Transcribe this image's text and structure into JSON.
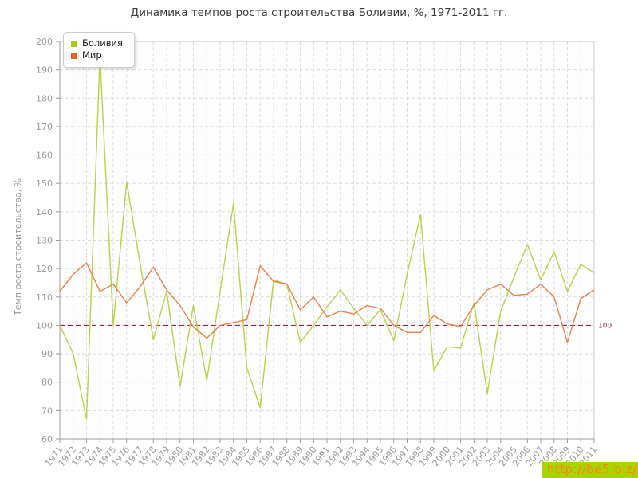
{
  "legend": {
    "items": [
      {
        "label": "Боливия",
        "color": "#a2c71d"
      },
      {
        "label": "Мир",
        "color": "#e2632e"
      }
    ]
  },
  "watermark": "http://be5.biz/",
  "axis": {
    "tick_color": "#9b9b9b",
    "label_color": "#9a9a9a",
    "grid_color": "#dcdcdc",
    "border_color": "#c9c9c9",
    "plot_bg": "#fdfdfd"
  },
  "chart_data": {
    "type": "line",
    "title": "Динамика темпов роста строительства Боливии, %, 1971-2011 гг.",
    "xlabel": "",
    "ylabel": "Темп роста строительства, %",
    "ylim": [
      60,
      200
    ],
    "ytick_step": 10,
    "grid": true,
    "legend_position": "top-left",
    "x": [
      1971,
      1972,
      1973,
      1974,
      1975,
      1976,
      1977,
      1978,
      1979,
      1980,
      1981,
      1982,
      1983,
      1984,
      1985,
      1986,
      1987,
      1988,
      1989,
      1990,
      1991,
      1992,
      1993,
      1994,
      1995,
      1996,
      1997,
      1998,
      1999,
      2000,
      2001,
      2002,
      2003,
      2004,
      2005,
      2006,
      2007,
      2008,
      2009,
      2010,
      2011
    ],
    "series": [
      {
        "name": "Боливия",
        "color": "#b5d44a",
        "values": [
          100,
          90,
          67,
          195,
          100,
          150.5,
          122,
          95,
          112,
          78.5,
          107,
          80.5,
          112,
          143,
          85,
          71,
          116,
          114.5,
          94,
          100,
          106.5,
          112.5,
          106,
          100,
          105.5,
          94.5,
          118,
          139,
          84,
          92.5,
          92,
          108,
          76,
          105,
          117,
          128.5,
          116,
          126,
          112,
          121.5,
          118.5
        ]
      },
      {
        "name": "Мир",
        "color": "#e9814a",
        "values": [
          112,
          118,
          122,
          112,
          114.5,
          108,
          113.5,
          120.5,
          112.5,
          107,
          99.5,
          95.5,
          100,
          101,
          102,
          121,
          115.5,
          114.5,
          105.5,
          110,
          103,
          105,
          104,
          107,
          106,
          100,
          97.5,
          97.5,
          103.5,
          100.5,
          99.5,
          107,
          112.5,
          114.5,
          110.5,
          111,
          114.5,
          110,
          94,
          109.5,
          112.5
        ]
      }
    ],
    "reference_line": {
      "value": 100,
      "label": "100",
      "color": "#96294b"
    }
  }
}
